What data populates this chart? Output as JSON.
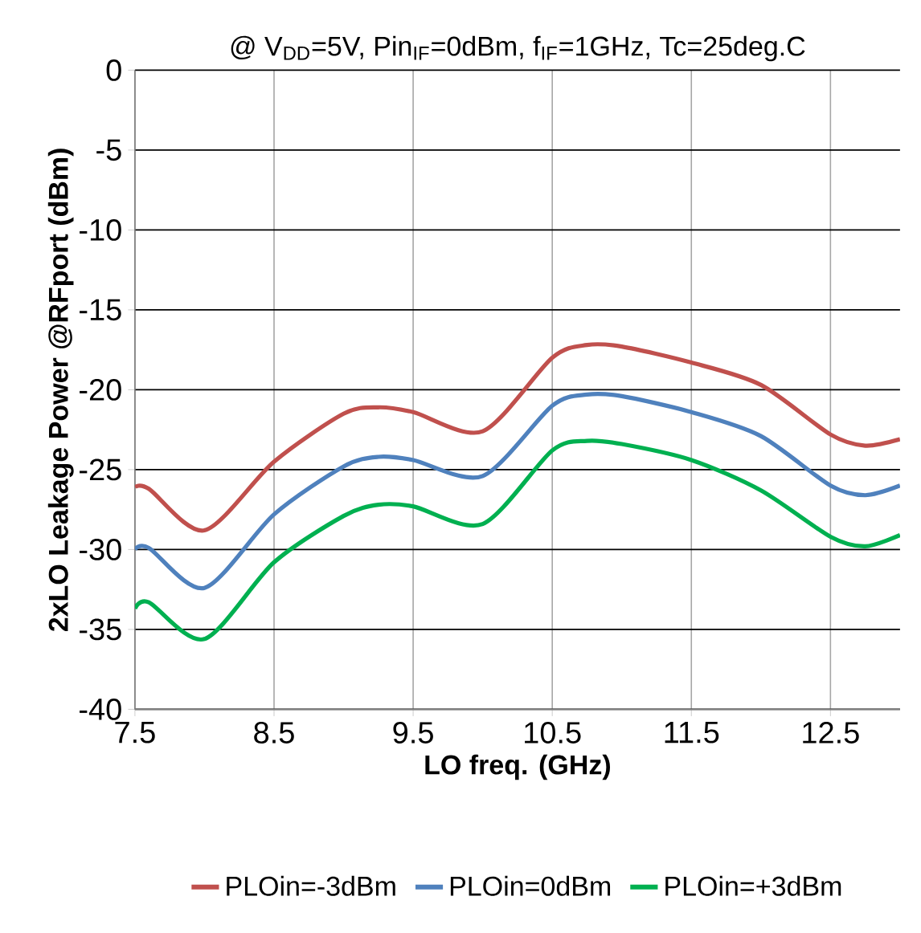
{
  "chart_data": {
    "type": "line",
    "title": "@ V$_{DD}$=5V, Pin$_{IF}$=0dBm, f$_{IF}$=1GHz, Tc=25deg.C",
    "xlabel": "LO freq. (GHz)",
    "ylabel": "2xLO Leakage Power @RFport (dBm)",
    "x": [
      7.5,
      7.6,
      8.0,
      8.5,
      9.0,
      9.25,
      9.5,
      10.0,
      10.5,
      10.75,
      11.0,
      11.5,
      12.0,
      12.5,
      12.75,
      13.0
    ],
    "series": [
      {
        "name": "PLOin=-3dBm",
        "color": "#c0504d",
        "values": [
          -26.1,
          -26.2,
          -28.8,
          -24.5,
          -21.5,
          -21.1,
          -21.4,
          -22.6,
          -18.0,
          -17.2,
          -17.3,
          -18.3,
          -19.7,
          -22.8,
          -23.5,
          -23.1
        ]
      },
      {
        "name": "PLOin=0dBm",
        "color": "#4f81bd",
        "values": [
          -30.0,
          -29.9,
          -32.4,
          -27.8,
          -24.8,
          -24.2,
          -24.4,
          -25.4,
          -21.0,
          -20.3,
          -20.4,
          -21.4,
          -22.9,
          -26.0,
          -26.6,
          -26.0
        ]
      },
      {
        "name": "PLOin=+3dBm",
        "color": "#00b050",
        "values": [
          -33.7,
          -33.3,
          -35.6,
          -30.8,
          -27.9,
          -27.2,
          -27.3,
          -28.4,
          -23.8,
          -23.2,
          -23.4,
          -24.4,
          -26.3,
          -29.2,
          -29.8,
          -29.1
        ]
      }
    ],
    "xlim": [
      7.5,
      13
    ],
    "ylim": [
      -40,
      0
    ],
    "xticks": [
      7.5,
      8.5,
      9.5,
      10.5,
      11.5,
      12.5
    ],
    "yticks": [
      0,
      -5,
      -10,
      -15,
      -20,
      -25,
      -30,
      -35,
      -40
    ],
    "grid": true,
    "legend": "bottom",
    "marker": "none",
    "line_style": "solid"
  }
}
